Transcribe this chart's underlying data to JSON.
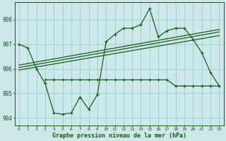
{
  "title": "Graphe pression niveau de la mer (hPa)",
  "background_color": "#cce8e8",
  "grid_color": "#99cccc",
  "line_color": "#1a5c1a",
  "xlim": [
    -0.5,
    23.5
  ],
  "ylim": [
    993.7,
    998.7
  ],
  "yticks": [
    994,
    995,
    996,
    997,
    998
  ],
  "xtick_labels": [
    "0",
    "1",
    "2",
    "3",
    "4",
    "5",
    "6",
    "7",
    "8",
    "9",
    "10",
    "11",
    "12",
    "13",
    "14",
    "15",
    "16",
    "17",
    "18",
    "19",
    "20",
    "21",
    "22",
    "23"
  ],
  "series1_x": [
    0,
    1,
    2,
    3,
    4,
    5,
    6,
    7,
    8,
    9,
    10,
    11,
    12,
    13,
    14,
    15,
    16,
    17,
    18,
    19,
    20,
    21,
    22,
    23
  ],
  "series1_y": [
    997.0,
    996.85,
    996.0,
    995.4,
    994.2,
    994.15,
    994.2,
    994.85,
    994.35,
    994.95,
    997.1,
    997.4,
    997.65,
    997.65,
    997.8,
    998.45,
    997.3,
    997.55,
    997.65,
    997.65,
    997.2,
    996.65,
    995.85,
    995.3
  ],
  "series2_x": [
    3,
    4,
    5,
    6,
    7,
    8,
    9,
    10,
    11,
    12,
    13,
    14,
    15,
    16,
    17,
    18,
    19,
    20,
    21,
    22,
    23
  ],
  "series2_y": [
    995.55,
    995.55,
    995.55,
    995.55,
    995.55,
    995.55,
    995.55,
    995.55,
    995.55,
    995.55,
    995.55,
    995.55,
    995.55,
    995.55,
    995.55,
    995.3,
    995.3,
    995.3,
    995.3,
    995.3,
    995.3
  ],
  "trend1_x": [
    0,
    23
  ],
  "trend1_y": [
    996.05,
    997.5
  ],
  "trend2_x": [
    0,
    23
  ],
  "trend2_y": [
    996.15,
    997.6
  ],
  "trend3_x": [
    0,
    23
  ],
  "trend3_y": [
    995.95,
    997.35
  ]
}
